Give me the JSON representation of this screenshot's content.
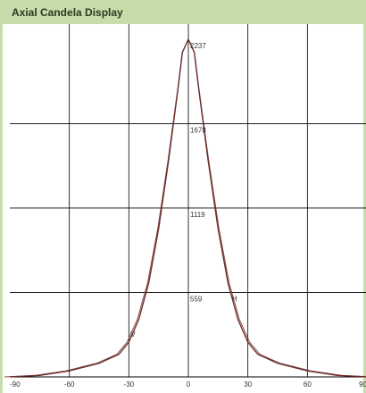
{
  "window": {
    "title": "Axial Candela Display"
  },
  "chart_data": {
    "type": "line",
    "title": "Axial Candela Display",
    "xlabel": "",
    "ylabel": "",
    "xlim": [
      -90,
      90
    ],
    "ylim": [
      0,
      2237
    ],
    "x_ticks": [
      "-90",
      "-60",
      "-30",
      "0",
      "30",
      "60",
      "90"
    ],
    "x_tick_values": [
      -90,
      -60,
      -30,
      0,
      30,
      60,
      90
    ],
    "y_ticks": [
      "2237",
      "1678",
      "1119",
      "559"
    ],
    "y_tick_values": [
      2237,
      1678,
      1119,
      559
    ],
    "grid": true,
    "curve_labels": [
      "V",
      "H"
    ],
    "series": [
      {
        "values_x": [
          -90,
          -75,
          -60,
          -45,
          -35,
          -30,
          -25,
          -20,
          -15,
          -10,
          -5,
          -3,
          0,
          3,
          5,
          10,
          15,
          20,
          25,
          30,
          35,
          45,
          60,
          75,
          90
        ],
        "values_y": [
          0,
          10,
          40,
          90,
          150,
          230,
          380,
          620,
          980,
          1430,
          1930,
          2150,
          2237,
          2150,
          1930,
          1430,
          980,
          620,
          380,
          230,
          150,
          90,
          40,
          10,
          0
        ]
      }
    ],
    "colors": {
      "curve": "#6b2a2a",
      "grid": "#000000",
      "title_bar": "#c7dcaa"
    }
  }
}
